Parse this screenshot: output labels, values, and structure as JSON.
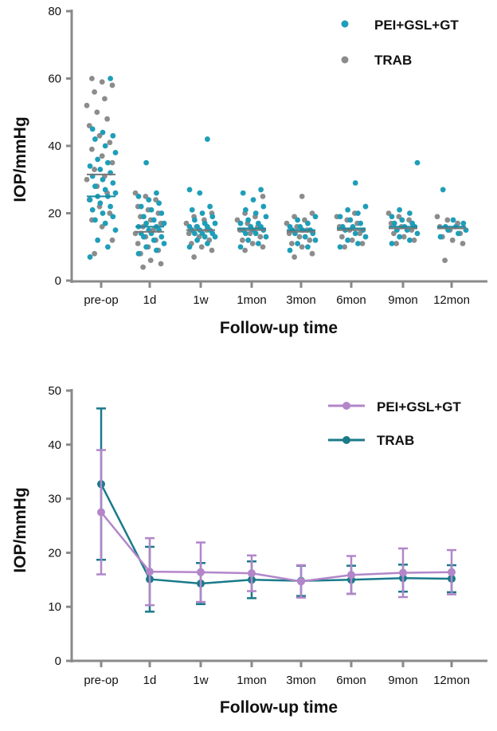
{
  "colors": {
    "axis": "#8a8a8a",
    "pei_scatter": "#1e9eb8",
    "trab_scatter": "#8c8c8c",
    "pei_line": "#b286c9",
    "trab_line": "#1a7a8a"
  },
  "chart_data": [
    {
      "type": "scatter",
      "title": "",
      "xlabel": "Follow-up time",
      "ylabel": "IOP/mmHg",
      "categories": [
        "pre-op",
        "1d",
        "1w",
        "1mon",
        "3mon",
        "6mon",
        "9mon",
        "12mon"
      ],
      "ylim": [
        0,
        80
      ],
      "yticks": [
        0,
        20,
        40,
        60,
        80
      ],
      "grid": false,
      "legend_position": "top-right",
      "series": [
        {
          "name": "PEI+GSL+GT",
          "mean": [
            25,
            16,
            15,
            15.5,
            15,
            15.5,
            16,
            16
          ],
          "points": [
            [
              7,
              10,
              12,
              15,
              17,
              18,
              19,
              20,
              21,
              22,
              23,
              24,
              25,
              25,
              26,
              27,
              28,
              29,
              30,
              31,
              32,
              33,
              34,
              35,
              36,
              38,
              40,
              42,
              43,
              44,
              45,
              60
            ],
            [
              8,
              9,
              10,
              11,
              12,
              13,
              13,
              14,
              14,
              15,
              15,
              16,
              16,
              17,
              17,
              18,
              19,
              20,
              21,
              22,
              23,
              24,
              25,
              26,
              35
            ],
            [
              10,
              11,
              12,
              13,
              13,
              14,
              14,
              14,
              15,
              15,
              15,
              16,
              16,
              16,
              17,
              17,
              18,
              19,
              20,
              21,
              22,
              26,
              27,
              42
            ],
            [
              10,
              11,
              12,
              13,
              14,
              14,
              15,
              15,
              15,
              16,
              16,
              17,
              17,
              18,
              19,
              20,
              21,
              22,
              24,
              26,
              27
            ],
            [
              9,
              10,
              11,
              12,
              13,
              14,
              14,
              15,
              15,
              15,
              16,
              16,
              17,
              18,
              19
            ],
            [
              10,
              11,
              12,
              13,
              14,
              15,
              15,
              16,
              16,
              17,
              18,
              19,
              20,
              21,
              22,
              29
            ],
            [
              11,
              12,
              13,
              14,
              15,
              15,
              16,
              16,
              17,
              17,
              18,
              19,
              20,
              21,
              35
            ],
            [
              13,
              14,
              15,
              15,
              16,
              16,
              17,
              18,
              27
            ]
          ]
        },
        {
          "name": "TRAB",
          "mean": [
            31.5,
            14.5,
            15,
            15,
            14.5,
            15,
            15.5,
            15.5
          ],
          "points": [
            [
              8,
              12,
              16,
              18,
              20,
              22,
              24,
              26,
              28,
              30,
              31,
              33,
              35,
              37,
              39,
              41,
              43,
              46,
              48,
              50,
              52,
              54,
              56,
              58,
              59,
              60
            ],
            [
              4,
              5,
              6,
              8,
              9,
              10,
              11,
              12,
              13,
              14,
              15,
              16,
              17,
              18,
              19,
              20,
              21,
              22,
              24,
              25,
              26
            ],
            [
              7,
              9,
              10,
              11,
              12,
              13,
              14,
              15,
              16,
              17,
              18,
              19,
              20
            ],
            [
              9,
              10,
              11,
              12,
              13,
              14,
              15,
              16,
              17,
              18,
              19,
              20,
              25
            ],
            [
              7,
              8,
              10,
              11,
              12,
              13,
              14,
              15,
              16,
              17,
              18,
              19,
              20,
              25
            ],
            [
              10,
              11,
              12,
              13,
              14,
              15,
              16,
              17,
              18,
              19,
              20
            ],
            [
              11,
              12,
              13,
              14,
              15,
              16,
              17,
              18,
              19,
              20
            ],
            [
              6,
              11,
              12,
              13,
              14,
              15,
              16,
              17,
              18,
              19
            ]
          ]
        }
      ]
    },
    {
      "type": "line",
      "title": "",
      "xlabel": "Follow-up time",
      "ylabel": "IOP/mmHg",
      "categories": [
        "pre-op",
        "1d",
        "1w",
        "1mon",
        "3mon",
        "6mon",
        "9mon",
        "12mon"
      ],
      "ylim": [
        0,
        50
      ],
      "yticks": [
        0,
        10,
        20,
        30,
        40,
        50
      ],
      "grid": false,
      "legend_position": "top-right",
      "series": [
        {
          "name": "PEI+GSL+GT",
          "values": [
            27.5,
            16.5,
            16.4,
            16.2,
            14.7,
            15.9,
            16.3,
            16.4
          ],
          "error": [
            11.5,
            6.2,
            5.5,
            3.3,
            3.0,
            3.5,
            4.5,
            4.1
          ]
        },
        {
          "name": "TRAB",
          "values": [
            32.7,
            15.1,
            14.3,
            15.0,
            14.8,
            15.0,
            15.3,
            15.2
          ],
          "error": [
            14.0,
            6.0,
            3.8,
            3.4,
            2.8,
            2.6,
            2.5,
            2.5
          ]
        }
      ]
    }
  ]
}
